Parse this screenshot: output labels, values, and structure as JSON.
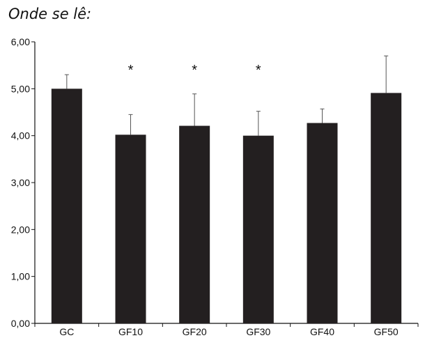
{
  "heading": "Onde se lê:",
  "chart_data": {
    "type": "bar",
    "title": "",
    "xlabel": "",
    "ylabel": "",
    "categories": [
      "GC",
      "GF10",
      "GF20",
      "GF30",
      "GF40",
      "GF50"
    ],
    "values": [
      5.0,
      4.02,
      4.21,
      4.0,
      4.27,
      4.91
    ],
    "error_plus": [
      0.3,
      0.43,
      0.68,
      0.52,
      0.3,
      0.79
    ],
    "annotations": [
      "",
      "*",
      "*",
      "*",
      "",
      ""
    ],
    "ylim": [
      0,
      6
    ],
    "yticks": [
      0,
      1,
      2,
      3,
      4,
      5,
      6
    ],
    "ytick_labels": [
      "0,00",
      "1,00",
      "2,00",
      "3,00",
      "4,00",
      "5,00",
      "6,00"
    ],
    "grid": false,
    "bar_color": "#231f20",
    "axis_color": "#111111"
  }
}
